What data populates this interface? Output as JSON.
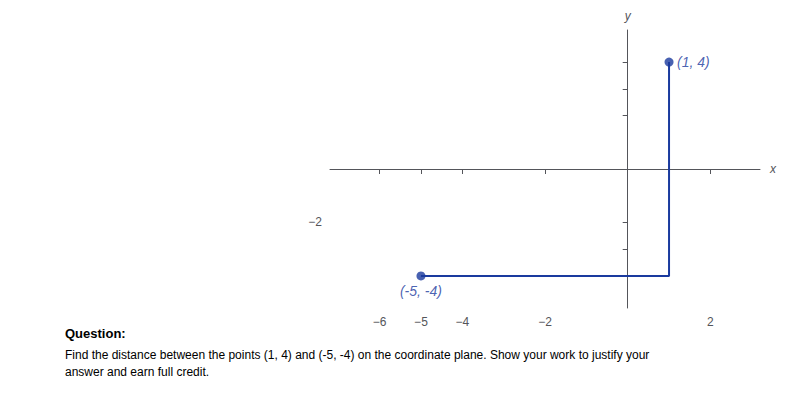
{
  "chart_data": {
    "type": "line",
    "title": "Question:",
    "subtitle": "Find the distance between the points (1, 4) and (-5, -4) on the coordinate plane. Show your work to justify your\nanswer and earn full credit.",
    "xlabel": "x",
    "ylabel": "y",
    "series": [
      {
        "type": "line",
        "color": "#1a3a9e",
        "x": [
          1,
          1,
          -5
        ],
        "values": [
          4,
          -4,
          -4
        ]
      },
      {
        "type": "scatter",
        "color": "#1a3a9e",
        "x": [
          1,
          -5
        ],
        "values": [
          4,
          -4
        ]
      }
    ],
    "annotations": [
      {
        "text": "(1, 4)",
        "x": 1,
        "y": 4
      },
      {
        "text": "(-5, -4)",
        "x": -5,
        "y": -4
      }
    ],
    "xlim": [
      -7.2,
      3.2
    ],
    "xticks": [
      {
        "value": -6,
        "label": "−6"
      },
      {
        "value": -5,
        "label": "−5"
      },
      {
        "value": -4,
        "label": "−4"
      },
      {
        "value": -2,
        "label": "−2"
      },
      2
    ],
    "ylim": [
      -5.2,
      5.2
    ],
    "yticks": [
      {
        "value": 2,
        "label": null
      },
      {
        "value": 3,
        "label": null
      },
      {
        "value": 4,
        "label": null
      },
      {
        "value": -2,
        "label": "−2"
      },
      {
        "value": -3,
        "label": null
      },
      {
        "value": -4,
        "label": null
      }
    ],
    "grid": false
  }
}
